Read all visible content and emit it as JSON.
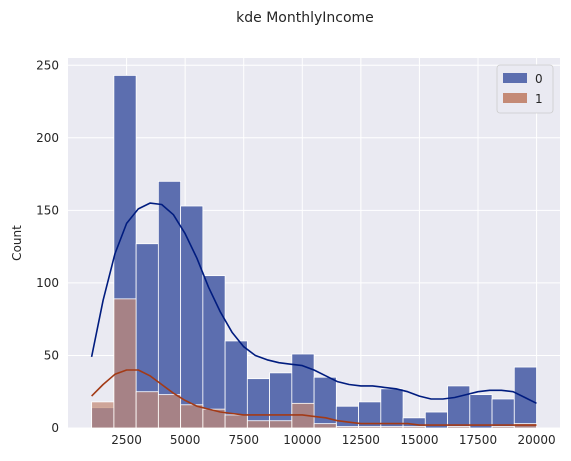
{
  "chart_data": {
    "type": "bar",
    "title": "kde MonthlyIncome",
    "xlabel": "",
    "ylabel": "Count",
    "xlim": [
      0,
      21000
    ],
    "ylim": [
      0,
      255
    ],
    "xticks": [
      2500,
      5000,
      7500,
      10000,
      12500,
      15000,
      17500,
      20000
    ],
    "yticks": [
      0,
      50,
      100,
      150,
      200,
      250
    ],
    "grid": true,
    "legend": "top-right",
    "bin_edges": [
      1009,
      1958,
      2908,
      3857,
      4807,
      5756,
      6706,
      7655,
      8605,
      9554,
      10504,
      11453,
      12403,
      13352,
      14302,
      15251,
      16201,
      17150,
      18100,
      19049,
      19999
    ],
    "series": [
      {
        "name": "0",
        "color": "#001c7f",
        "bar_color": "#5c6eaf",
        "values": [
          14,
          243,
          127,
          170,
          153,
          105,
          60,
          34,
          38,
          51,
          35,
          15,
          18,
          27,
          7,
          11,
          29,
          23,
          20,
          42
        ],
        "kde": [
          [
            1009,
            49
          ],
          [
            1500,
            88
          ],
          [
            2000,
            120
          ],
          [
            2500,
            141
          ],
          [
            3000,
            151
          ],
          [
            3500,
            155
          ],
          [
            4000,
            154
          ],
          [
            4500,
            147
          ],
          [
            5000,
            134
          ],
          [
            5500,
            117
          ],
          [
            6000,
            97
          ],
          [
            6500,
            80
          ],
          [
            7000,
            66
          ],
          [
            7500,
            56
          ],
          [
            8000,
            50
          ],
          [
            8500,
            47
          ],
          [
            9000,
            45
          ],
          [
            9500,
            44
          ],
          [
            10000,
            43
          ],
          [
            10500,
            40
          ],
          [
            11000,
            36
          ],
          [
            11500,
            32
          ],
          [
            12000,
            30
          ],
          [
            12500,
            29
          ],
          [
            13000,
            29
          ],
          [
            13500,
            28
          ],
          [
            14000,
            27
          ],
          [
            14500,
            25
          ],
          [
            15000,
            22
          ],
          [
            15500,
            20
          ],
          [
            16000,
            20
          ],
          [
            16500,
            21
          ],
          [
            17000,
            23
          ],
          [
            17500,
            25
          ],
          [
            18000,
            26
          ],
          [
            18500,
            26
          ],
          [
            19000,
            25
          ],
          [
            19500,
            21
          ],
          [
            19999,
            17
          ]
        ]
      },
      {
        "name": "1",
        "color": "#a33a16",
        "bar_color": "#c48a76",
        "values": [
          18,
          89,
          25,
          23,
          16,
          13,
          9,
          5,
          5,
          17,
          3,
          1,
          1,
          1,
          1,
          0,
          1,
          0,
          1,
          3
        ],
        "kde": [
          [
            1009,
            22
          ],
          [
            1500,
            30
          ],
          [
            2000,
            37
          ],
          [
            2500,
            40
          ],
          [
            3000,
            40
          ],
          [
            3500,
            36
          ],
          [
            4000,
            30
          ],
          [
            4500,
            24
          ],
          [
            5000,
            19
          ],
          [
            5500,
            15
          ],
          [
            6000,
            13
          ],
          [
            6500,
            11
          ],
          [
            7000,
            10
          ],
          [
            7500,
            9
          ],
          [
            8000,
            9
          ],
          [
            8500,
            9
          ],
          [
            9000,
            9
          ],
          [
            9500,
            9
          ],
          [
            10000,
            9
          ],
          [
            10500,
            8
          ],
          [
            11000,
            7
          ],
          [
            11500,
            5
          ],
          [
            12000,
            4
          ],
          [
            12500,
            3
          ],
          [
            13000,
            3
          ],
          [
            13500,
            3
          ],
          [
            14000,
            3
          ],
          [
            14500,
            3
          ],
          [
            15000,
            2
          ],
          [
            15500,
            2
          ],
          [
            16000,
            2
          ],
          [
            16500,
            2
          ],
          [
            17000,
            2
          ],
          [
            17500,
            2
          ],
          [
            18000,
            2
          ],
          [
            18500,
            2
          ],
          [
            19000,
            2
          ],
          [
            19500,
            2
          ],
          [
            19999,
            2
          ]
        ]
      }
    ]
  }
}
